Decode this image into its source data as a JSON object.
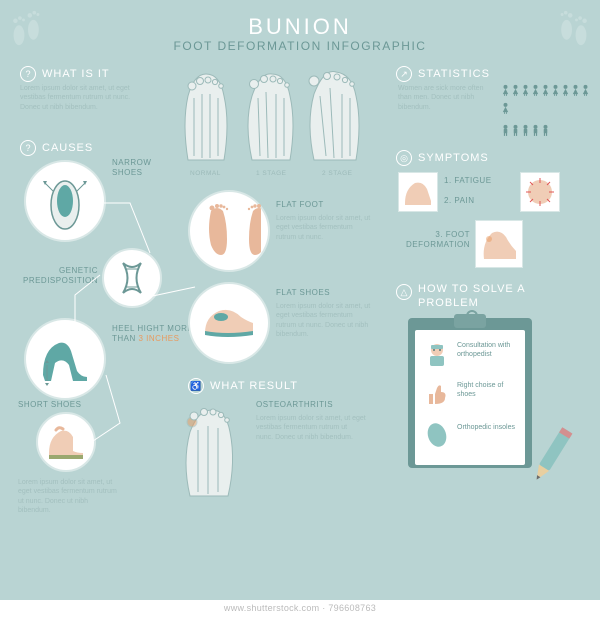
{
  "colors": {
    "bg": "#b9d4d3",
    "white": "#fff",
    "heading": "#ffffff",
    "sub": "#6c9896",
    "label": "#6c9896",
    "body": "#a3c0bf",
    "circleBorder": "#d8e7e6",
    "skin": "#e8b89b",
    "skinLight": "#f0cdb6",
    "shoeTeal": "#5fa8a5",
    "shoeOlive": "#9ba86f",
    "orange": "#e89a5f",
    "bone": "#e9efee",
    "clipboard": "#6c9896"
  },
  "title": "BUNION",
  "subtitle": "FOOT DEFORMATION INFOGRAPHIC",
  "lorem": "Lorem ipsum dolor sit amet, ut eget vestibas fermentum rutrum ut nunc. Donec ut nibh bibendum.",
  "loremShort": "Lorem ipsum dolor sit amet, ut eget vestibas fermentum rutrum ut nunc.",
  "sections": {
    "what": {
      "heading": "WHAT IS IT",
      "icon": "book"
    },
    "stats": {
      "heading": "STATISTICS",
      "icon": "chart",
      "text": "Women are sick more often than men. Donec ut nibh bibendum.",
      "women": 10,
      "men": 5,
      "womanColor": "#6c9896",
      "manColor": "#6c9896"
    },
    "causes": {
      "heading": "CAUSES",
      "icon": "qmarks",
      "items": [
        {
          "label": "NARROW SHOES"
        },
        {
          "label": "GENETIC PREDISPOSITION"
        },
        {
          "label": "HEEL HIGHT MORE THAN ",
          "accent": "3 INCHES"
        },
        {
          "label": "FLAT FOOT"
        },
        {
          "label": "FLAT SHOES"
        },
        {
          "label": "SHORT SHOES"
        }
      ]
    },
    "result": {
      "heading": "WHAT RESULT",
      "icon": "wheel",
      "label": "OSTEOARTHRITIS"
    },
    "symptoms": {
      "heading": "SYMPTOMS",
      "icon": "target",
      "items": [
        "1. FATIGUE",
        "2. PAIN",
        "3. FOOT DEFORMATION"
      ]
    },
    "solve": {
      "heading": "HOW TO SOLVE A PROBLEM",
      "icon": "warn",
      "items": [
        "Consultation with orthopedist",
        "Right choise of shoes",
        "Orthopedic insoles"
      ]
    }
  },
  "stages": [
    "NORMAL",
    "1 STAGE",
    "2 STAGE"
  ],
  "watermark": "www.shutterstock.com · 796608763"
}
